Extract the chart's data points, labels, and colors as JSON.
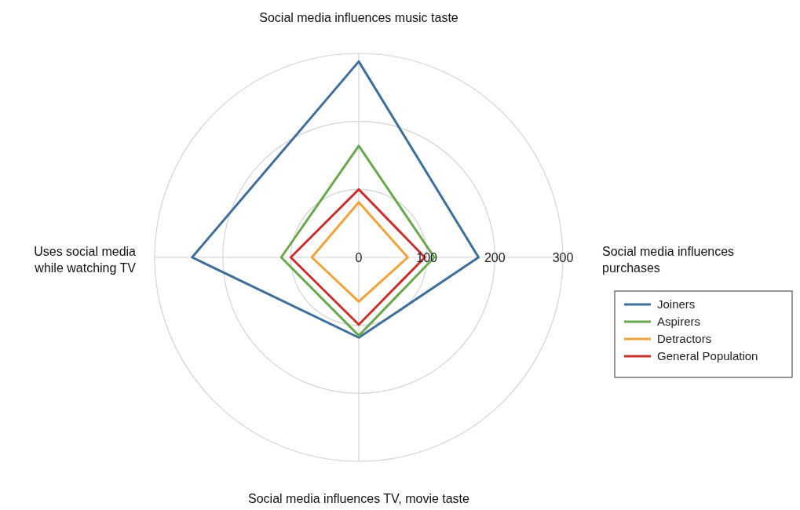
{
  "chart_data": {
    "type": "radar",
    "categories": [
      "Social media influences music taste",
      "Social media influences purchases",
      "Social media influences TV, movie taste",
      "Uses social media while watching TV"
    ],
    "series": [
      {
        "name": "Joiners",
        "color": "#3e6f9a",
        "values": [
          288,
          176,
          118,
          245
        ]
      },
      {
        "name": "Aspirers",
        "color": "#6aa84f",
        "values": [
          164,
          111,
          115,
          114
        ]
      },
      {
        "name": "Detractors",
        "color": "#f0a33a",
        "values": [
          81,
          72,
          65,
          69
        ]
      },
      {
        "name": "General Population",
        "color": "#c9302c",
        "values": [
          100,
          97,
          99,
          100
        ]
      }
    ],
    "ylim": [
      0,
      300
    ],
    "yticks": [
      0,
      100,
      200,
      300
    ],
    "grid": true,
    "legend": "right",
    "marker": "none",
    "line_style": "solid"
  }
}
